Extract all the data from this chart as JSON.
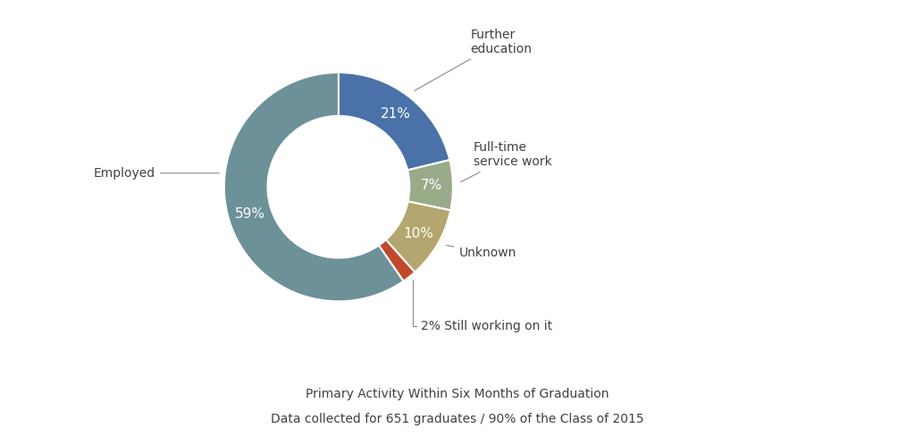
{
  "labels": [
    "Further education",
    "Full-time service work",
    "Unknown",
    "Still working on it",
    "Employed"
  ],
  "values": [
    21,
    7,
    10,
    2,
    59
  ],
  "colors": [
    "#4a72a8",
    "#9aab89",
    "#b5a56e",
    "#c0492c",
    "#6d9199"
  ],
  "pct_labels": [
    "21%",
    "7%",
    "10%",
    "",
    "59%"
  ],
  "subtitle_line1": "Primary Activity Within Six Months of Graduation",
  "subtitle_line2": "Data collected for 651 graduates / 90% of the Class of 2015",
  "background_color": "#ffffff",
  "text_color": "#404040",
  "pct_label_color": "#ffffff",
  "wedge_label_color": "#404040",
  "donut_width": 0.38,
  "startangle": 90,
  "figsize": [
    10.24,
    4.98
  ],
  "dpi": 100
}
